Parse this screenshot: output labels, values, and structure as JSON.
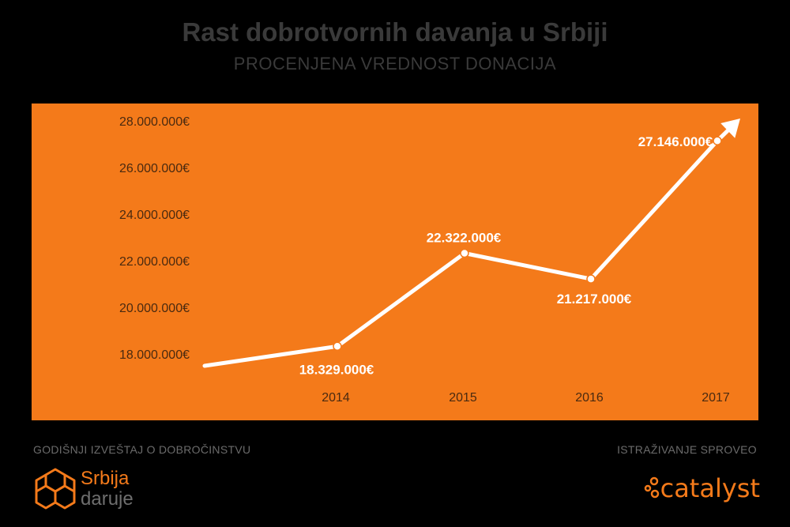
{
  "header": {
    "title": "Rast dobrotvornih davanja u Srbiji",
    "subtitle": "PROCENJENA VREDNOST DONACIJA"
  },
  "chart_data": {
    "type": "line",
    "title": "Rast dobrotvornih davanja u Srbiji",
    "subtitle": "PROCENJENA VREDNOST DONACIJA",
    "x": [
      "2014",
      "2015",
      "2016",
      "2017"
    ],
    "values": [
      18329000,
      22322000,
      21217000,
      27146000
    ],
    "data_labels": [
      "18.329.000€",
      "22.322.000€",
      "21.217.000€",
      "27.146.000€"
    ],
    "y_ticks": [
      "18.000.000€",
      "20.000.000€",
      "22.000.000€",
      "24.000.000€",
      "26.000.000€",
      "28.000.000€"
    ],
    "y_tick_values": [
      18000000,
      20000000,
      22000000,
      24000000,
      26000000,
      28000000
    ],
    "ylim": [
      17000000,
      28500000
    ],
    "grid": false,
    "legend": "none",
    "colors": {
      "background": "#f47a1a",
      "line": "#ffffff",
      "tick_text": "#4a2a10"
    }
  },
  "footer": {
    "left_caption": "GODIŠNJI IZVEŠTAJ O DOBROČINSTVU",
    "right_caption": "ISTRAŽIVANJE SPROVEO",
    "left_logo": {
      "line1": "Srbija",
      "line2": "daruje",
      "icon": "lattice-logo-icon"
    },
    "right_logo": {
      "word": "catalyst",
      "icon": "dots-logo-icon"
    }
  }
}
